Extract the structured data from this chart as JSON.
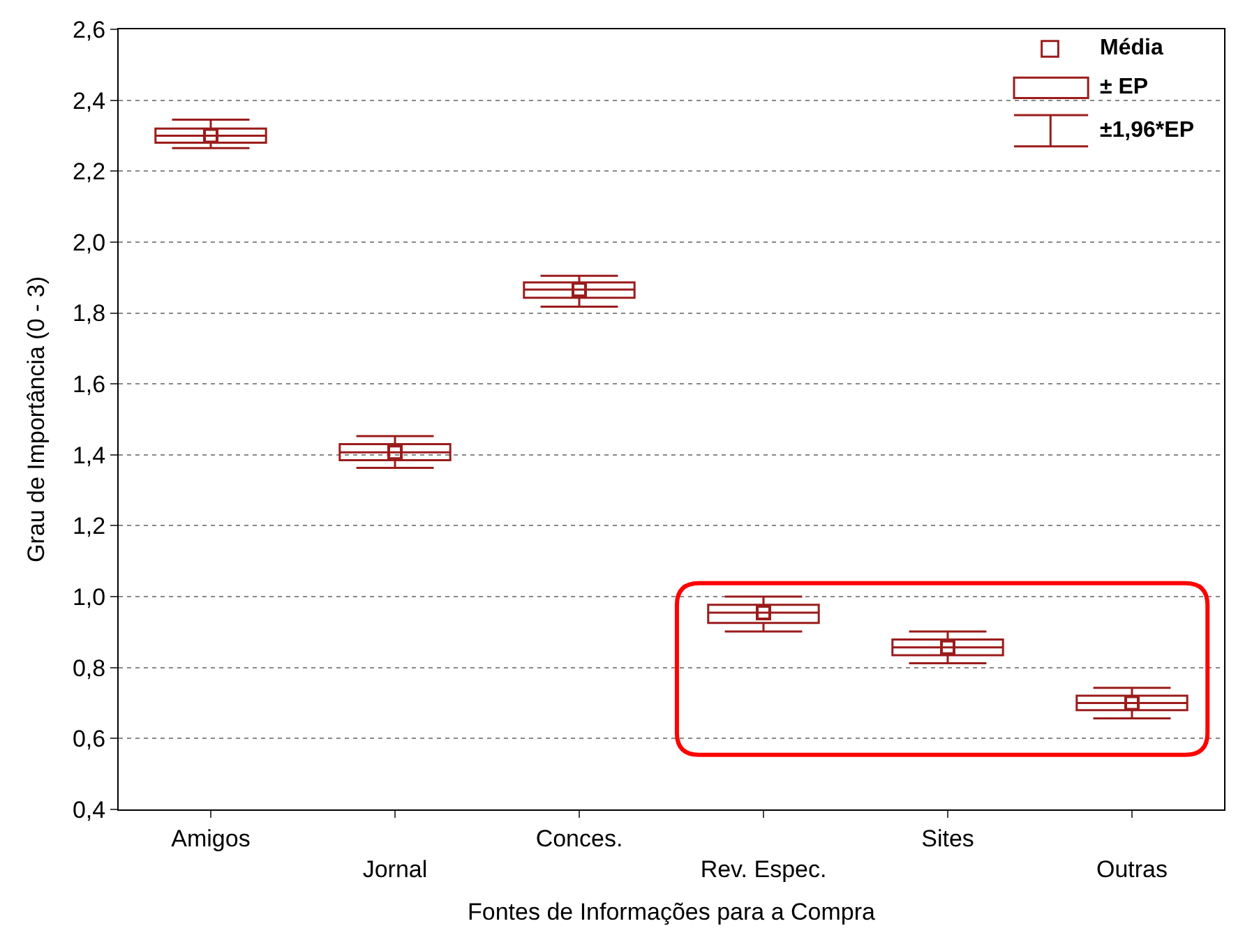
{
  "chart_data": {
    "type": "box",
    "xlabel": "Fontes de Informações para a Compra",
    "ylabel": "Grau de Importância (0 - 3)",
    "categories": [
      "Amigos",
      "Jornal",
      "Conces.",
      "Rev. Espec.",
      "Sites",
      "Outras"
    ],
    "color": "#9b1c1c",
    "boxes": [
      {
        "low": 2.265,
        "q1": 2.28,
        "median": 2.3,
        "q3": 2.32,
        "high": 2.345,
        "mean": 2.3
      },
      {
        "low": 1.363,
        "q1": 1.385,
        "median": 1.407,
        "q3": 1.43,
        "high": 1.453,
        "mean": 1.407
      },
      {
        "low": 1.818,
        "q1": 1.843,
        "median": 1.866,
        "q3": 1.886,
        "high": 1.905,
        "mean": 1.866
      },
      {
        "low": 0.902,
        "q1": 0.926,
        "median": 0.955,
        "q3": 0.977,
        "high": 1.0,
        "mean": 0.955
      },
      {
        "low": 0.812,
        "q1": 0.835,
        "median": 0.857,
        "q3": 0.879,
        "high": 0.902,
        "mean": 0.857
      },
      {
        "low": 0.657,
        "q1": 0.68,
        "median": 0.7,
        "q3": 0.721,
        "high": 0.743,
        "mean": 0.7
      }
    ],
    "ylim": [
      0.4,
      2.6
    ],
    "yticks": [
      {
        "value": 0.4,
        "label": "0,4"
      },
      {
        "value": 0.6,
        "label": "0,6"
      },
      {
        "value": 0.8,
        "label": "0,8"
      },
      {
        "value": 1.0,
        "label": "1,0"
      },
      {
        "value": 1.2,
        "label": "1,2"
      },
      {
        "value": 1.4,
        "label": "1,4"
      },
      {
        "value": 1.6,
        "label": "1,6"
      },
      {
        "value": 1.8,
        "label": "1,8"
      },
      {
        "value": 2.0,
        "label": "2,0"
      },
      {
        "value": 2.2,
        "label": "2,2"
      },
      {
        "value": 2.4,
        "label": "2,4"
      },
      {
        "value": 2.6,
        "label": "2,6"
      }
    ],
    "grid": "y",
    "marker": "square",
    "annotations": [
      "Média",
      "± EP",
      "±1,96*EP"
    ]
  }
}
